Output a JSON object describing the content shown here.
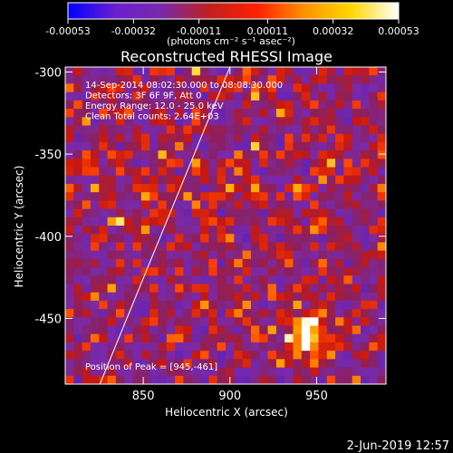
{
  "colorbar": {
    "ticks": [
      "-0.00053",
      "-0.00032",
      "-0.00011",
      "0.00011",
      "0.00032",
      "0.00053"
    ],
    "tick_values": [
      -0.00053,
      -0.00032,
      -0.00011,
      0.00011,
      0.00032,
      0.00053
    ],
    "unit_label": "(photons cm⁻² s⁻¹ asec⁻²)",
    "colors": [
      "#0000ff",
      "#6a1fd0",
      "#7a2aa8",
      "#c02020",
      "#ff2000",
      "#ff9000",
      "#ffd800",
      "#ffffff"
    ]
  },
  "chart_data": {
    "type": "heatmap",
    "title": "Reconstructed RHESSI Image",
    "xlabel": "Heliocentric X (arcsec)",
    "ylabel": "Heliocentric Y (arcsec)",
    "xlim": [
      805,
      990
    ],
    "ylim": [
      -490,
      -297
    ],
    "xticks": [
      850,
      900,
      950
    ],
    "yticks": [
      -300,
      -350,
      -400,
      -450
    ],
    "clim": [
      -0.00053,
      0.00053
    ],
    "peak": [
      945,
      -461
    ],
    "limb_line": [
      [
        825,
        -490
      ],
      [
        900,
        -297
      ]
    ],
    "annotations": [
      "14-Sep-2014 08:02:30.000 to 08:08:30.000",
      "Detectors: 3F 6F 9F, Att 0",
      "Energy Range: 12.0 - 25.0 keV",
      "Clean     Total counts: 2.64E+03"
    ],
    "peak_label": "Position of Peak = [945,-461]"
  },
  "footer": {
    "timestamp": "2-Jun-2019 12:57"
  }
}
